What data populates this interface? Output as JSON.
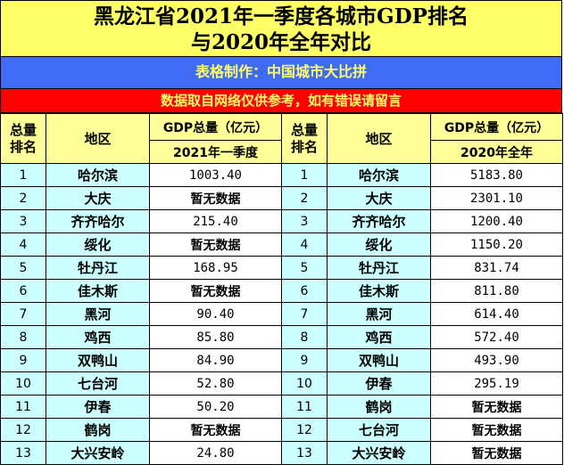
{
  "title": {
    "line1": "黑龙江省2021年一季度各城市GDP排名",
    "line2": "与2020年全年对比"
  },
  "credit": "表格制作：中国城市大比拼",
  "disclaimer": "数据取自网络仅供参考，如有错误请留言",
  "headers": {
    "rank_top": "总量",
    "rank_bottom": "排名",
    "region": "地区",
    "gdp_total": "GDP总量（亿元）",
    "period_left": "2021年一季度",
    "period_right": "2020年全年"
  },
  "colors": {
    "title_bg": "#ffff66",
    "credit_bg": "#3f6bf5",
    "disclaimer_bg": "#ff0000",
    "header_bg": "#ffff99",
    "name_bg": "#ccffff"
  },
  "left": [
    {
      "rank": "1",
      "city": "哈尔滨",
      "value": "1003.40"
    },
    {
      "rank": "2",
      "city": "大庆",
      "value": "暂无数据"
    },
    {
      "rank": "3",
      "city": "齐齐哈尔",
      "value": "215.40"
    },
    {
      "rank": "4",
      "city": "绥化",
      "value": "暂无数据"
    },
    {
      "rank": "5",
      "city": "牡丹江",
      "value": "168.95"
    },
    {
      "rank": "6",
      "city": "佳木斯",
      "value": "暂无数据"
    },
    {
      "rank": "7",
      "city": "黑河",
      "value": "90.40"
    },
    {
      "rank": "8",
      "city": "鸡西",
      "value": "85.80"
    },
    {
      "rank": "9",
      "city": "双鸭山",
      "value": "84.90"
    },
    {
      "rank": "10",
      "city": "七台河",
      "value": "52.80"
    },
    {
      "rank": "11",
      "city": "伊春",
      "value": "50.20"
    },
    {
      "rank": "12",
      "city": "鹤岗",
      "value": "暂无数据"
    },
    {
      "rank": "13",
      "city": "大兴安岭",
      "value": "24.80"
    }
  ],
  "right": [
    {
      "rank": "1",
      "city": "哈尔滨",
      "value": "5183.80"
    },
    {
      "rank": "2",
      "city": "大庆",
      "value": "2301.10"
    },
    {
      "rank": "3",
      "city": "齐齐哈尔",
      "value": "1200.40"
    },
    {
      "rank": "4",
      "city": "绥化",
      "value": "1150.20"
    },
    {
      "rank": "5",
      "city": "牡丹江",
      "value": "831.74"
    },
    {
      "rank": "6",
      "city": "佳木斯",
      "value": "811.80"
    },
    {
      "rank": "7",
      "city": "黑河",
      "value": "614.40"
    },
    {
      "rank": "8",
      "city": "鸡西",
      "value": "572.40"
    },
    {
      "rank": "9",
      "city": "双鸭山",
      "value": "493.90"
    },
    {
      "rank": "10",
      "city": "伊春",
      "value": "295.19"
    },
    {
      "rank": "11",
      "city": "鹤岗",
      "value": "暂无数据"
    },
    {
      "rank": "12",
      "city": "七台河",
      "value": "暂无数据"
    },
    {
      "rank": "13",
      "city": "大兴安岭",
      "value": "暂无数据"
    }
  ]
}
